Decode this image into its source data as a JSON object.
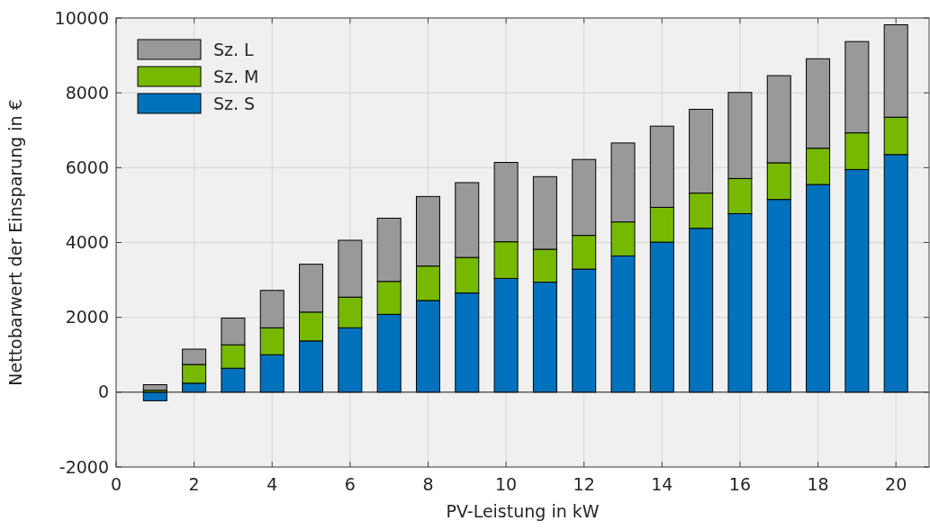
{
  "chart_data": {
    "type": "bar",
    "stacked": true,
    "xlabel": "PV-Leistung in kW",
    "ylabel": "Nettobarwert der Einsparung in €",
    "x": [
      1,
      2,
      3,
      4,
      5,
      6,
      7,
      8,
      9,
      10,
      11,
      12,
      13,
      14,
      15,
      16,
      17,
      18,
      19,
      20
    ],
    "series": [
      {
        "name": "Sz. S",
        "color": "#0072bd",
        "values": [
          -230,
          240,
          640,
          1000,
          1370,
          1720,
          2080,
          2450,
          2650,
          3040,
          2940,
          3290,
          3640,
          4010,
          4380,
          4770,
          5150,
          5550,
          5950,
          6350
        ]
      },
      {
        "name": "Sz. M",
        "color": "#77b900",
        "values": [
          50,
          500,
          625,
          720,
          770,
          820,
          880,
          920,
          950,
          980,
          880,
          900,
          910,
          930,
          940,
          940,
          980,
          970,
          980,
          1000
        ]
      },
      {
        "name": "Sz. L",
        "color": "#999999",
        "values": [
          150,
          410,
          715,
          1000,
          1280,
          1520,
          1690,
          1860,
          2000,
          2120,
          1940,
          2030,
          2110,
          2170,
          2240,
          2300,
          2330,
          2390,
          2440,
          2470
        ]
      }
    ],
    "xlim": [
      0,
      20.85
    ],
    "ylim": [
      -2000,
      10000
    ],
    "xticks": [
      0,
      2,
      4,
      6,
      8,
      10,
      12,
      14,
      16,
      18,
      20
    ],
    "yticks": [
      -2000,
      0,
      2000,
      4000,
      6000,
      8000,
      10000
    ],
    "grid": true,
    "legend": "top left"
  }
}
